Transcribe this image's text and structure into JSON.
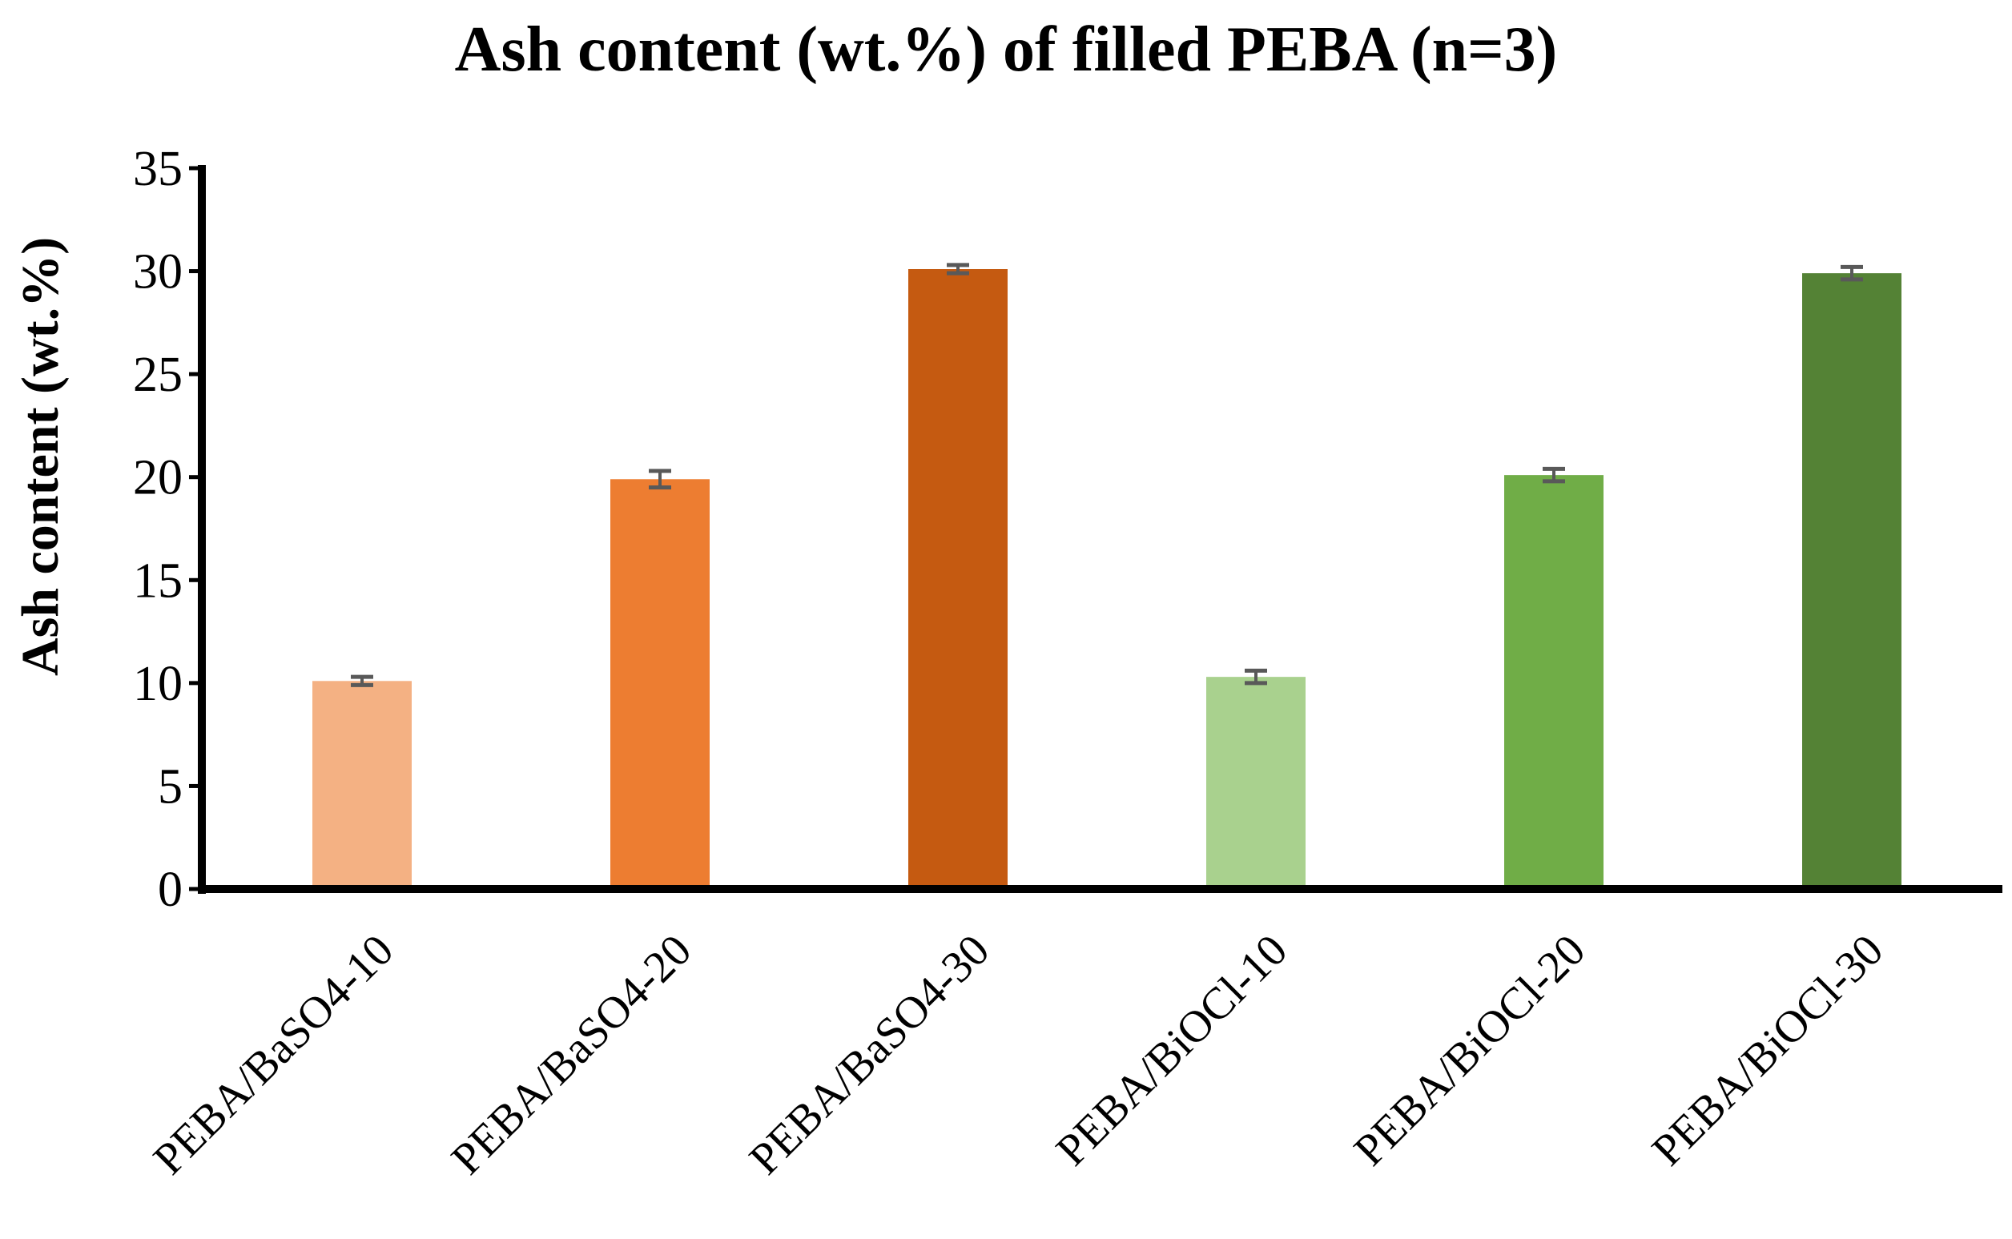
{
  "chart_data": {
    "type": "bar",
    "title": "Ash content (wt.%) of filled PEBA (n=3)",
    "xlabel": "",
    "ylabel": "Ash content (wt.%)",
    "ylim": [
      0,
      35
    ],
    "yticks": [
      0,
      5,
      10,
      15,
      20,
      25,
      30,
      35
    ],
    "grid": false,
    "legend": "none",
    "categories": [
      "PEBA/BaSO4-10",
      "PEBA/BaSO4-20",
      "PEBA/BaSO4-30",
      "PEBA/BiOCl-10",
      "PEBA/BiOCl-20",
      "PEBA/BiOCl-30"
    ],
    "values": [
      10.1,
      19.9,
      30.1,
      10.3,
      20.1,
      29.9
    ],
    "errors": [
      0.2,
      0.4,
      0.2,
      0.3,
      0.3,
      0.3
    ],
    "colors": [
      "#F4B183",
      "#ED7D31",
      "#C55A11",
      "#A9D18E",
      "#70AD47",
      "#548235"
    ],
    "error_bar_color": "#595959",
    "axis_color": "#000000"
  }
}
